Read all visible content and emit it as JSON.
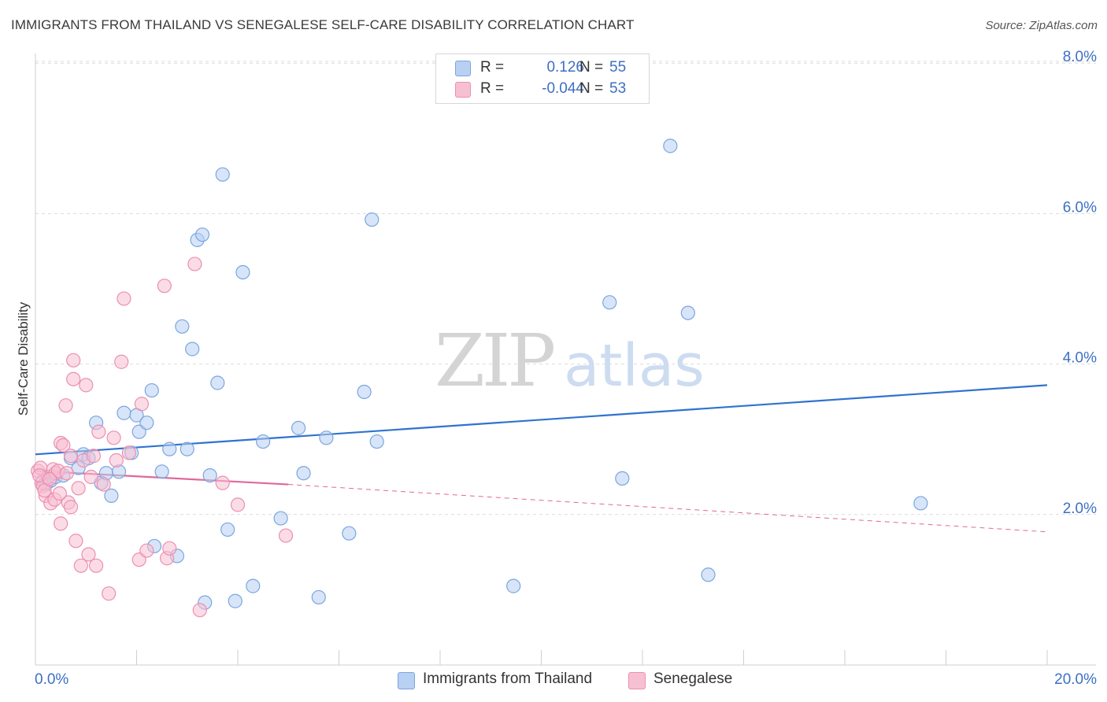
{
  "title": "IMMIGRANTS FROM THAILAND VS SENEGALESE SELF-CARE DISABILITY CORRELATION CHART",
  "source": "Source: ZipAtlas.com",
  "watermark": {
    "zip": "ZIP",
    "atlas": "atlas"
  },
  "colors": {
    "blue_fill": "#b8d0f2",
    "blue_stroke": "#7aa6e0",
    "blue_line": "#2f73cf",
    "pink_fill": "#f7c0d2",
    "pink_stroke": "#ec8fb0",
    "pink_line": "#e0689a",
    "axis_text": "#3d6fc4",
    "grid": "#dcdcdc"
  },
  "legend": {
    "rows": [
      {
        "r_label": "R =",
        "r_value": "0.126",
        "n_label": "N =",
        "n_value": "55"
      },
      {
        "r_label": "R =",
        "r_value": "-0.044",
        "n_label": "N =",
        "n_value": "53"
      }
    ]
  },
  "bottom_legend": [
    "Immigrants from Thailand",
    "Senegalese"
  ],
  "chart_data": {
    "type": "scatter",
    "title": "IMMIGRANTS FROM THAILAND VS SENEGALESE SELF-CARE DISABILITY CORRELATION CHART",
    "xlabel": "",
    "ylabel": "Self-Care Disability",
    "xlim": [
      0,
      20
    ],
    "ylim": [
      0,
      8.3
    ],
    "x_tick_labels": [
      "0.0%",
      "20.0%"
    ],
    "y_ticks": [
      2,
      4,
      6,
      8
    ],
    "y_tick_labels": [
      "2.0%",
      "4.0%",
      "6.0%",
      "8.0%"
    ],
    "grid": "horizontal dashed",
    "legend_placement": "top-center",
    "series": [
      {
        "name": "Immigrants from Thailand",
        "trend": {
          "x": [
            0,
            20
          ],
          "y": [
            2.8,
            3.72
          ],
          "dashed_from": null
        },
        "points": [
          [
            0.15,
            2.45
          ],
          [
            0.25,
            2.5
          ],
          [
            0.3,
            2.45
          ],
          [
            0.4,
            2.5
          ],
          [
            0.55,
            2.52
          ],
          [
            0.7,
            2.75
          ],
          [
            0.85,
            2.62
          ],
          [
            0.95,
            2.8
          ],
          [
            1.05,
            2.75
          ],
          [
            1.2,
            3.22
          ],
          [
            1.3,
            2.42
          ],
          [
            1.4,
            2.55
          ],
          [
            1.5,
            2.25
          ],
          [
            1.65,
            2.57
          ],
          [
            1.75,
            3.35
          ],
          [
            1.9,
            2.82
          ],
          [
            2.0,
            3.32
          ],
          [
            2.05,
            3.1
          ],
          [
            2.2,
            3.22
          ],
          [
            2.3,
            3.65
          ],
          [
            2.35,
            1.58
          ],
          [
            2.5,
            2.57
          ],
          [
            2.65,
            2.87
          ],
          [
            2.8,
            1.45
          ],
          [
            2.9,
            4.5
          ],
          [
            3.0,
            2.87
          ],
          [
            3.1,
            4.2
          ],
          [
            3.2,
            5.65
          ],
          [
            3.3,
            5.72
          ],
          [
            3.35,
            0.83
          ],
          [
            3.45,
            2.52
          ],
          [
            3.6,
            3.75
          ],
          [
            3.7,
            6.52
          ],
          [
            3.8,
            1.8
          ],
          [
            3.95,
            0.85
          ],
          [
            4.1,
            5.22
          ],
          [
            4.3,
            1.05
          ],
          [
            4.5,
            2.97
          ],
          [
            4.85,
            1.95
          ],
          [
            5.2,
            3.15
          ],
          [
            5.3,
            2.55
          ],
          [
            5.6,
            0.9
          ],
          [
            5.75,
            3.02
          ],
          [
            6.2,
            1.75
          ],
          [
            6.5,
            3.63
          ],
          [
            6.65,
            5.92
          ],
          [
            6.75,
            2.97
          ],
          [
            9.45,
            1.05
          ],
          [
            11.35,
            4.82
          ],
          [
            11.6,
            2.48
          ],
          [
            12.55,
            6.9
          ],
          [
            12.9,
            4.68
          ],
          [
            13.3,
            1.2
          ],
          [
            17.5,
            2.15
          ],
          [
            0.2,
            2.4
          ]
        ]
      },
      {
        "name": "Senegalese",
        "trend": {
          "x": [
            0,
            5
          ],
          "y": [
            2.58,
            2.4
          ],
          "dashed_to": [
            20,
            1.77
          ]
        },
        "points": [
          [
            0.05,
            2.58
          ],
          [
            0.1,
            2.62
          ],
          [
            0.12,
            2.42
          ],
          [
            0.15,
            2.38
          ],
          [
            0.2,
            2.25
          ],
          [
            0.25,
            2.5
          ],
          [
            0.3,
            2.15
          ],
          [
            0.35,
            2.6
          ],
          [
            0.4,
            2.55
          ],
          [
            0.45,
            2.58
          ],
          [
            0.5,
            1.88
          ],
          [
            0.5,
            2.95
          ],
          [
            0.55,
            2.92
          ],
          [
            0.6,
            3.45
          ],
          [
            0.65,
            2.16
          ],
          [
            0.7,
            2.1
          ],
          [
            0.7,
            2.78
          ],
          [
            0.75,
            4.05
          ],
          [
            0.75,
            3.8
          ],
          [
            0.8,
            1.65
          ],
          [
            0.85,
            2.35
          ],
          [
            0.9,
            1.32
          ],
          [
            0.95,
            2.72
          ],
          [
            1.0,
            3.72
          ],
          [
            1.05,
            1.47
          ],
          [
            1.1,
            2.5
          ],
          [
            1.15,
            2.78
          ],
          [
            1.2,
            1.32
          ],
          [
            1.25,
            3.1
          ],
          [
            1.35,
            2.4
          ],
          [
            1.45,
            0.95
          ],
          [
            1.55,
            3.02
          ],
          [
            1.6,
            2.72
          ],
          [
            1.7,
            4.03
          ],
          [
            1.75,
            4.87
          ],
          [
            1.85,
            2.82
          ],
          [
            2.05,
            1.4
          ],
          [
            2.1,
            3.47
          ],
          [
            2.2,
            1.52
          ],
          [
            2.55,
            5.04
          ],
          [
            2.6,
            1.42
          ],
          [
            2.65,
            1.55
          ],
          [
            3.15,
            5.33
          ],
          [
            3.25,
            0.73
          ],
          [
            3.7,
            2.42
          ],
          [
            4.0,
            2.13
          ],
          [
            4.95,
            1.72
          ],
          [
            0.08,
            2.52
          ],
          [
            0.18,
            2.32
          ],
          [
            0.28,
            2.47
          ],
          [
            0.62,
            2.55
          ],
          [
            0.38,
            2.2
          ],
          [
            0.48,
            2.28
          ]
        ]
      }
    ]
  }
}
